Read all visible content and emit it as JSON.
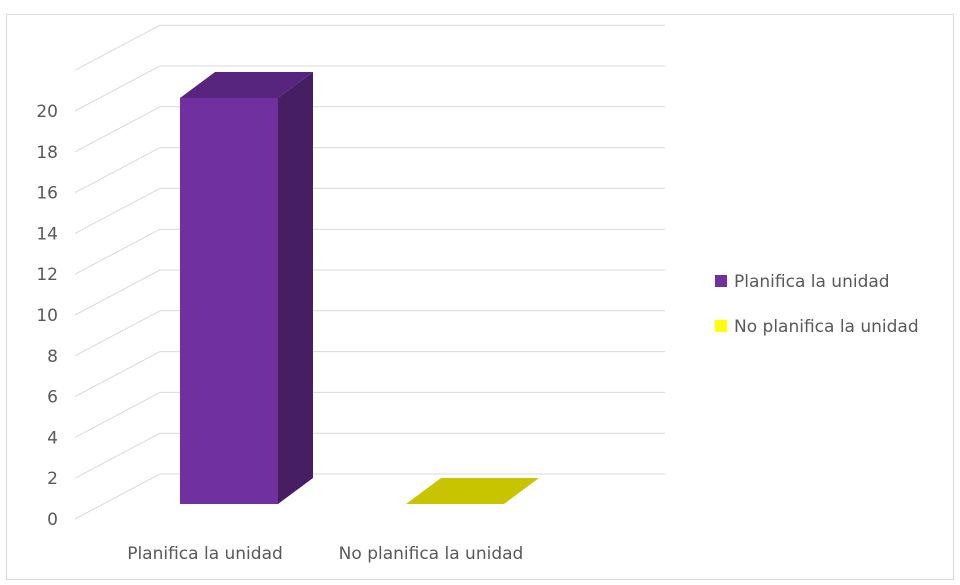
{
  "chart_data": {
    "type": "bar",
    "categories": [
      "Planifica la unidad",
      "No planifica la unidad"
    ],
    "values": [
      20,
      0
    ],
    "ylim": [
      0,
      20
    ],
    "yticks": [
      0,
      2,
      4,
      6,
      8,
      10,
      12,
      14,
      16,
      18,
      20
    ],
    "grid": true,
    "legend": {
      "position": "right",
      "entries": [
        "Planifica la unidad",
        "No planifica la unidad"
      ]
    },
    "colors": {
      "series": [
        "#7030a0",
        "#c8c400"
      ],
      "legend_markers": [
        "#7030a0",
        "#ffff00"
      ],
      "grid": "#d9d9d9"
    },
    "style": "3d-column"
  }
}
